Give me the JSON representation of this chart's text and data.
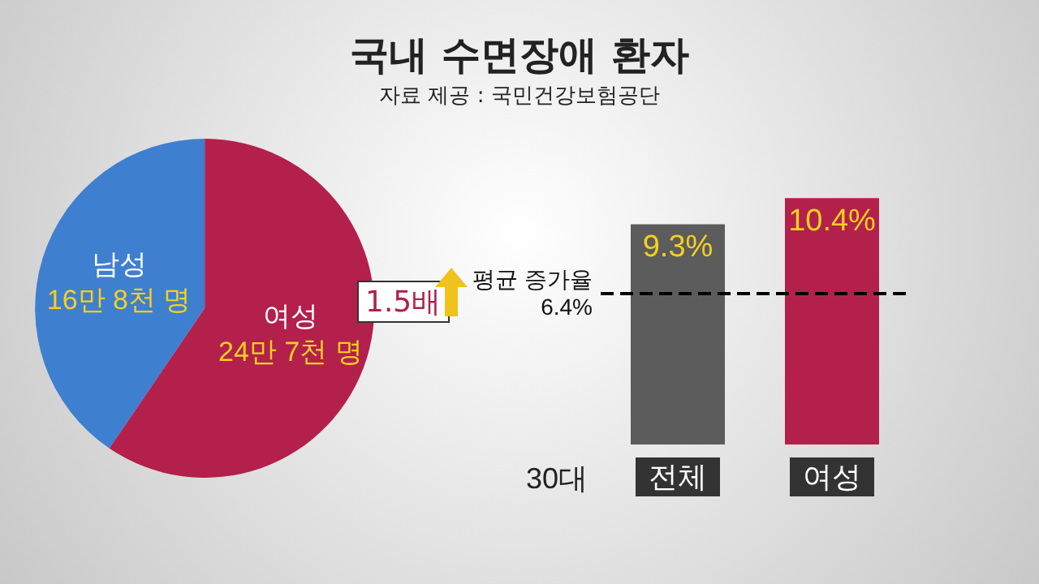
{
  "chart_data": [
    {
      "type": "pie",
      "title": "국내 수면장애 환자",
      "subtitle": "자료 제공 : 국민건강보험공단",
      "categories": [
        "남성",
        "여성"
      ],
      "values": [
        40.5,
        59.5
      ],
      "colors": [
        "#3f7fcf",
        "#b3204c"
      ],
      "annotations": [
        "1.5배",
        "16만 8천 명",
        "24만 7천 명"
      ],
      "legend": false
    },
    {
      "type": "bar",
      "xlabel": "30대",
      "categories": [
        "전체",
        "여성"
      ],
      "values": [
        9.3,
        10.4
      ],
      "value_labels": [
        "9.3%",
        "10.4%"
      ],
      "colors": [
        "#5c5c5c",
        "#b3204c"
      ],
      "ref_lines": [
        {
          "axis": "y",
          "value": 6.4,
          "label": "평균 증가율\n6.4%",
          "line_style": "dashed",
          "color": "#000000"
        }
      ],
      "grid": false,
      "legend": false
    }
  ]
}
